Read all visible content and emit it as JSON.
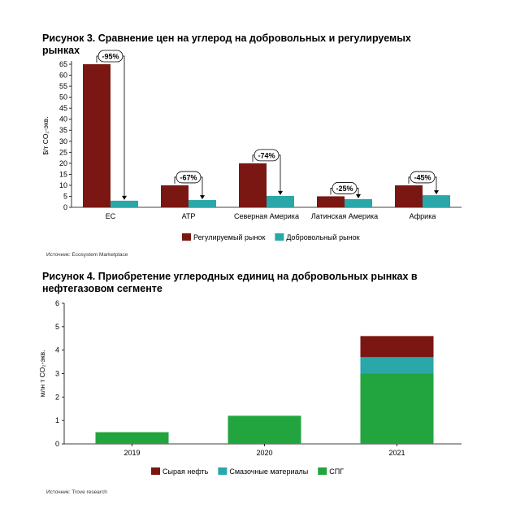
{
  "figure3": {
    "title": "Рисунок 3. Сравнение цен на углерод на добровольных и регулируемых рынках",
    "source": "Источник: Ecosystem Marketplace",
    "chart_data": {
      "type": "bar",
      "ylabel": "$/т CO₂-экв.",
      "ylim": [
        0,
        65
      ],
      "yticks": [
        0,
        5,
        10,
        15,
        20,
        25,
        30,
        35,
        40,
        45,
        50,
        55,
        60,
        65
      ],
      "categories": [
        "ЕС",
        "АТР",
        "Северная Америка",
        "Латинская Америка",
        "Африка"
      ],
      "series": [
        {
          "name": "Регулируемый рынок",
          "color": "#7b1712",
          "values": [
            65,
            10,
            20,
            5,
            10
          ]
        },
        {
          "name": "Добровольный рынок",
          "color": "#2aa7a8",
          "values": [
            3,
            3.3,
            5.2,
            3.7,
            5.5
          ]
        }
      ],
      "annotations": [
        "-95%",
        "-67%",
        "-74%",
        "-25%",
        "-45%"
      ],
      "legend": "bottom"
    }
  },
  "figure4": {
    "title": "Рисунок 4. Приобретение углеродных единиц на добровольных рынках в нефтегазовом сегменте",
    "source": "Источник: Trove research",
    "chart_data": {
      "type": "bar",
      "stacked": true,
      "ylabel": "млн т CO₂-экв.",
      "ylim": [
        0,
        6
      ],
      "yticks": [
        0,
        1,
        2,
        3,
        4,
        5,
        6
      ],
      "categories": [
        "2019",
        "2020",
        "2021"
      ],
      "series": [
        {
          "name": "СПГ",
          "color": "#22a53f",
          "values": [
            0.5,
            1.2,
            3.0
          ]
        },
        {
          "name": "Смазочные материалы",
          "color": "#2aa7a8",
          "values": [
            0,
            0,
            0.7
          ]
        },
        {
          "name": "Сырая нефть",
          "color": "#7b1712",
          "values": [
            0,
            0,
            0.9
          ]
        }
      ],
      "legend_order": [
        "Сырая нефть",
        "Смазочные материалы",
        "СПГ"
      ],
      "legend": "bottom"
    }
  }
}
